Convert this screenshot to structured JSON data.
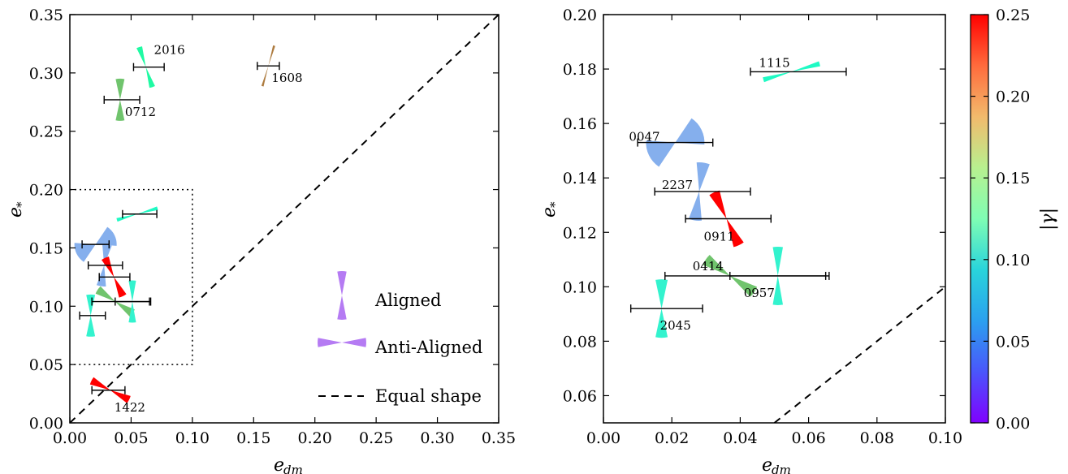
{
  "chart_data": [
    {
      "type": "scatter",
      "panel": "left",
      "xlabel": "e",
      "xlabel_sub": "dm",
      "ylabel": "e",
      "ylabel_sub": "*",
      "xlim": [
        0.0,
        0.35
      ],
      "ylim": [
        0.0,
        0.35
      ],
      "xticks": [
        "0.00",
        "0.05",
        "0.10",
        "0.15",
        "0.20",
        "0.25",
        "0.30",
        "0.35"
      ],
      "yticks": [
        "0.00",
        "0.05",
        "0.10",
        "0.15",
        "0.20",
        "0.25",
        "0.30",
        "0.35"
      ],
      "zoom_box": {
        "x": [
          0.0,
          0.1
        ],
        "y": [
          0.05,
          0.2
        ]
      },
      "equal_shape_line": true,
      "legend": {
        "placement": "lower-right",
        "entries": [
          {
            "label": "Aligned"
          },
          {
            "label": "Anti-Aligned"
          },
          {
            "label": "Equal shape"
          }
        ]
      },
      "points": [
        {
          "label": "2016",
          "e_dm": 0.062,
          "e_dm_err": [
            0.052,
            0.077
          ],
          "e_star": 0.305,
          "gamma": 0.14,
          "angle": -18,
          "halfwidth": 8
        },
        {
          "label": "1608",
          "e_dm": 0.162,
          "e_dm_err": [
            0.153,
            0.171
          ],
          "e_star": 0.306,
          "gamma": 0.21,
          "angle": 16,
          "halfwidth": 3
        },
        {
          "label": "0712",
          "e_dm": 0.041,
          "e_dm_err": [
            0.028,
            0.057
          ],
          "e_star": 0.277,
          "gamma": 0.18,
          "angle": 0,
          "halfwidth": 12
        },
        {
          "label": "1115",
          "e_dm": 0.055,
          "e_dm_err": [
            0.043,
            0.071
          ],
          "e_star": 0.179,
          "gamma": 0.11,
          "angle": 74,
          "halfwidth": 5
        },
        {
          "label": "0047",
          "e_dm": 0.021,
          "e_dm_err": [
            0.01,
            0.032
          ],
          "e_star": 0.153,
          "gamma": 0.06,
          "angle": 64,
          "halfwidth": 30
        },
        {
          "label": "2237",
          "e_dm": 0.028,
          "e_dm_err": [
            0.015,
            0.043
          ],
          "e_star": 0.135,
          "gamma": 0.06,
          "angle": 8,
          "halfwidth": 13
        },
        {
          "label": "0911",
          "e_dm": 0.036,
          "e_dm_err": [
            0.024,
            0.049
          ],
          "e_star": 0.125,
          "gamma": 0.25,
          "angle": -25,
          "halfwidth": 11
        },
        {
          "label": "0414",
          "e_dm": 0.037,
          "e_dm_err": [
            0.018,
            0.065
          ],
          "e_star": 0.104,
          "gamma": 0.18,
          "angle": -56,
          "halfwidth": 12
        },
        {
          "label": "0957",
          "e_dm": 0.051,
          "e_dm_err": [
            0.037,
            0.066
          ],
          "e_star": 0.104,
          "gamma": 0.1,
          "angle": 0,
          "halfwidth": 10
        },
        {
          "label": "2045",
          "e_dm": 0.017,
          "e_dm_err": [
            0.008,
            0.029
          ],
          "e_star": 0.092,
          "gamma": 0.1,
          "angle": 0,
          "halfwidth": 12
        },
        {
          "label": "1422",
          "e_dm": 0.033,
          "e_dm_err": [
            0.018,
            0.045
          ],
          "e_star": 0.028,
          "gamma": 0.25,
          "angle": -63,
          "halfwidth": 11
        }
      ],
      "point_labels_shown": [
        "2016",
        "1608",
        "0712",
        "1422"
      ]
    },
    {
      "type": "scatter",
      "panel": "right",
      "xlabel": "e",
      "xlabel_sub": "dm",
      "ylabel": "e",
      "ylabel_sub": "*",
      "xlim": [
        0.0,
        0.1
      ],
      "ylim": [
        0.05,
        0.2
      ],
      "xticks": [
        "0.00",
        "0.02",
        "0.04",
        "0.06",
        "0.08",
        "0.10"
      ],
      "yticks": [
        "0.06",
        "0.08",
        "0.10",
        "0.12",
        "0.14",
        "0.16",
        "0.18",
        "0.20"
      ],
      "equal_shape_line": true,
      "point_labels_shown": [
        "1115",
        "0047",
        "2237",
        "0911",
        "0414",
        "0957",
        "2045"
      ]
    }
  ],
  "colorbar": {
    "label": "|γ|",
    "range": [
      0.0,
      0.25
    ],
    "ticks": [
      "0.00",
      "0.05",
      "0.10",
      "0.15",
      "0.20",
      "0.25"
    ],
    "colormap": "rainbow"
  },
  "colors": {
    "legend_marker": "#b57bf3",
    "errorbar": "#000000"
  }
}
